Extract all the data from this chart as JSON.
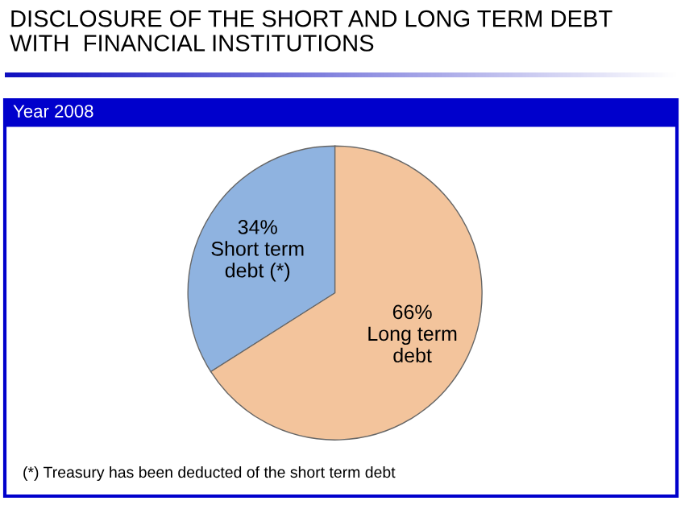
{
  "chart_data": {
    "type": "pie",
    "title": "DISCLOSURE OF THE SHORT AND LONG TERM DEBT\nWITH  FINANCIAL INSTITUTIONS",
    "subtitle": "Year 2008",
    "categories": [
      "Short term\ndebt (*)",
      "Long term\ndebt"
    ],
    "values": [
      34,
      66
    ],
    "colors": [
      "#8fb3e0",
      "#f3c49c"
    ],
    "value_labels": [
      "34%",
      "66%"
    ],
    "annotations": [
      "(*) Treasury has been deducted of the short term debt"
    ]
  }
}
